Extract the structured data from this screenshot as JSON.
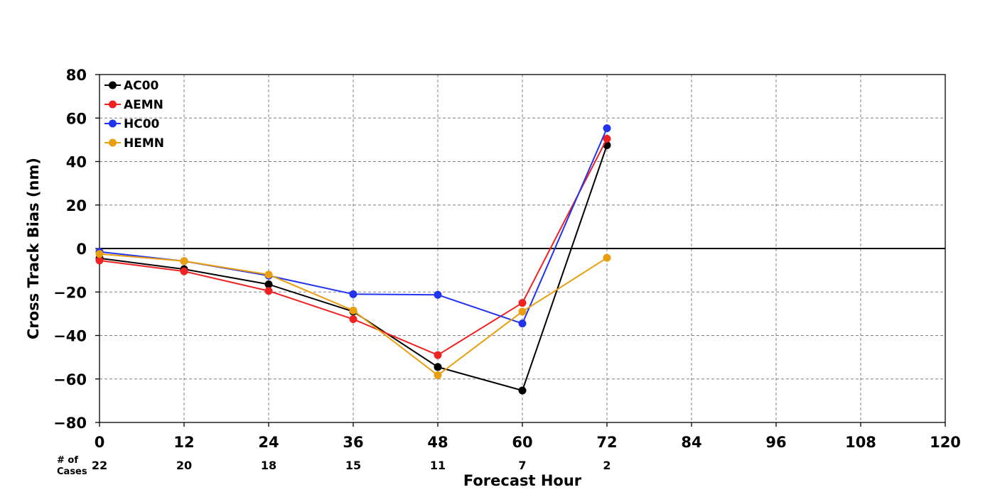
{
  "chart_data": {
    "type": "line",
    "xlabel": "Forecast Hour",
    "ylabel": "Cross Track Bias (nm)",
    "xlim": [
      0,
      120
    ],
    "ylim": [
      -80,
      80
    ],
    "x_ticks": [
      "0",
      "12",
      "24",
      "36",
      "48",
      "60",
      "72",
      "84",
      "96",
      "108",
      "120"
    ],
    "y_ticks": [
      "80",
      "60",
      "40",
      "20",
      "0",
      "−20",
      "−40",
      "−60",
      "−80"
    ],
    "x_tick_values": [
      0,
      12,
      24,
      36,
      48,
      60,
      72,
      84,
      96,
      108,
      120
    ],
    "y_tick_values": [
      80,
      60,
      40,
      20,
      0,
      -20,
      -40,
      -60,
      -80
    ],
    "grid": true,
    "zero_line": true,
    "legend_position": "top-left",
    "cases_title_line1": "# of",
    "cases_title_line2": "Cases",
    "cases": [
      "22",
      "20",
      "18",
      "15",
      "11",
      "7",
      "2"
    ],
    "cases_x": [
      0,
      12,
      24,
      36,
      48,
      60,
      72
    ],
    "series": [
      {
        "name": "AC00",
        "color": "#000000",
        "x": [
          0,
          12,
          24,
          36,
          48,
          60,
          72
        ],
        "values": [
          -4.5,
          -9.5,
          -16.5,
          -29,
          -54.5,
          -65.3,
          47.5
        ]
      },
      {
        "name": "AEMN",
        "color": "#ee2222",
        "x": [
          0,
          12,
          24,
          36,
          48,
          60,
          72
        ],
        "values": [
          -5.5,
          -10.5,
          -19.5,
          -32.5,
          -49,
          -25,
          50.5
        ]
      },
      {
        "name": "HC00",
        "color": "#2233ee",
        "x": [
          0,
          12,
          24,
          36,
          48,
          60,
          72
        ],
        "values": [
          -1.5,
          -5.8,
          -12.5,
          -21,
          -21.3,
          -34.5,
          55.3
        ]
      },
      {
        "name": "HEMN",
        "color": "#e8a010",
        "x": [
          0,
          12,
          24,
          36,
          48,
          60,
          72
        ],
        "values": [
          -2.5,
          -5.8,
          -12,
          -28.5,
          -58.3,
          -29,
          -4.3
        ]
      }
    ]
  }
}
